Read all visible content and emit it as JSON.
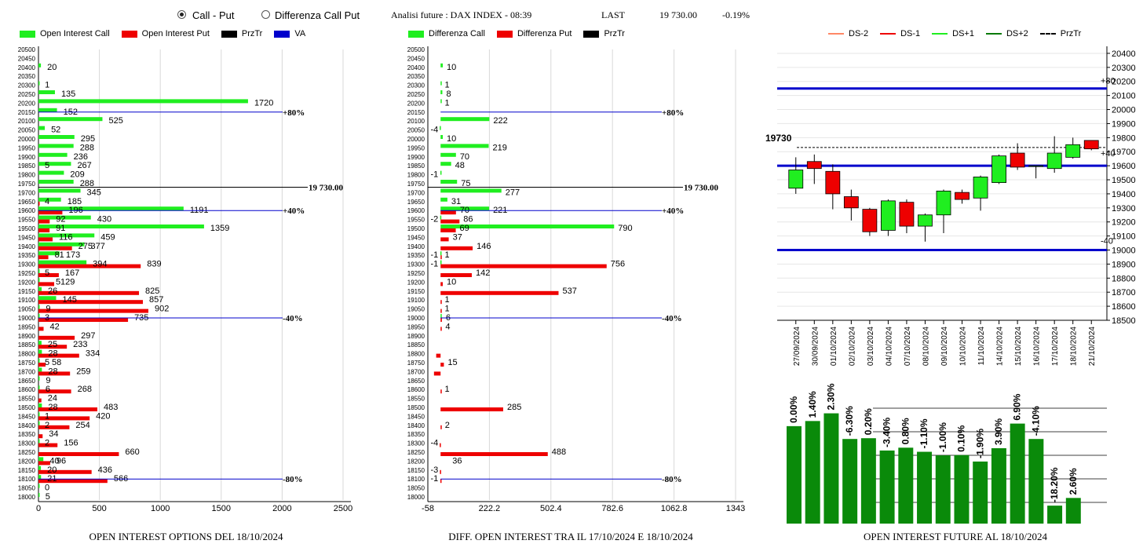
{
  "header": {
    "radio_call_put": "Call - Put",
    "radio_diff": "Differenza Call Put",
    "analysis_title": "Analisi future : DAX INDEX - 08:39",
    "last_label": "LAST",
    "last_value": "19 730.00",
    "change": "-0.19%"
  },
  "colors": {
    "call": "#20ee20",
    "put": "#ee0000",
    "prztr": "#000000",
    "va": "#0000cc",
    "future_bar": "#0a8a0a",
    "ds_minus2": "#ff8866",
    "ds_plus2": "#0a7a0a"
  },
  "strikes": [
    20500,
    20450,
    20400,
    20350,
    20300,
    20250,
    20200,
    20150,
    20100,
    20050,
    20000,
    19950,
    19900,
    19850,
    19800,
    19750,
    19700,
    19650,
    19600,
    19550,
    19500,
    19450,
    19400,
    19350,
    19300,
    19250,
    19200,
    19150,
    19100,
    19050,
    19000,
    18950,
    18900,
    18850,
    18800,
    18750,
    18700,
    18650,
    18600,
    18550,
    18500,
    18450,
    18400,
    18350,
    18300,
    18250,
    18200,
    18150,
    18100,
    18050,
    18000
  ],
  "left_panel": {
    "caption": "OPEN INTEREST OPTIONS DEL 18/10/2024",
    "legend": [
      "Open Interest Call",
      "Open Interest Put",
      "PrzTr",
      "VA"
    ],
    "x_ticks": [
      0,
      500,
      1000,
      1500,
      2000,
      2500
    ],
    "x_range": [
      0,
      2500
    ],
    "price_label": "19 730.00",
    "level_labels": [
      "+80%",
      "+40%",
      "-40%",
      "-80%"
    ],
    "calls": {
      "20400": 20,
      "20300": 1,
      "20250": 135,
      "20200": 1720,
      "20150": 152,
      "20100": 525,
      "20050": 52,
      "20000": 295,
      "19950": 288,
      "19900": 236,
      "19850": 267,
      "19800": 209,
      "19750": 288,
      "19700": 345,
      "19650": 185,
      "19600": 1191,
      "19550": 430,
      "19500": 1359,
      "19450": 459,
      "19400": 377,
      "19350": 173,
      "19300": 394,
      "19250": 5,
      "19200": 5,
      "19150": 26,
      "19100": 145,
      "19050": 9,
      "19000": 3,
      "18850": 25,
      "18800": 28,
      "18750": 5,
      "18700": 28,
      "18650": 9,
      "18600": 6,
      "18500": 28,
      "18450": 1,
      "18400": 2,
      "18300": 2,
      "18200": 40,
      "18150": 20,
      "18100": 21,
      "18050": 0,
      "18000": 5
    },
    "puts": {
      "19650": 4,
      "19600": 196,
      "19550": 92,
      "19500": 91,
      "19450": 116,
      "19400": 275,
      "19350": 81,
      "19300": 839,
      "19250": 167,
      "19200": 129,
      "19150": 825,
      "19100": 857,
      "19050": 902,
      "19000": 735,
      "18950": 42,
      "18900": 297,
      "18850": 233,
      "18800": 334,
      "18750": 58,
      "18700": 259,
      "18600": 268,
      "18550": 24,
      "18500": 483,
      "18450": 420,
      "18400": 254,
      "18350": 34,
      "18300": 156,
      "18250": 660,
      "18200": 96,
      "18150": 436,
      "18100": 566
    },
    "labels": [
      {
        "strike": 20400,
        "text": "20"
      },
      {
        "strike": 20300,
        "text": "1"
      },
      {
        "strike": 20250,
        "text": "135"
      },
      {
        "strike": 20200,
        "text": "1720"
      },
      {
        "strike": 20150,
        "text": "152"
      },
      {
        "strike": 20100,
        "text": "525"
      },
      {
        "strike": 20050,
        "text": "52"
      },
      {
        "strike": 20000,
        "text": "295"
      },
      {
        "strike": 19950,
        "text": "288"
      },
      {
        "strike": 19900,
        "text": "236"
      },
      {
        "strike": 19850,
        "text": "267"
      },
      {
        "strike": 19850,
        "text": "5",
        "at": 0
      },
      {
        "strike": 19800,
        "text": "209"
      },
      {
        "strike": 19750,
        "text": "288"
      },
      {
        "strike": 19700,
        "text": "345"
      },
      {
        "strike": 19650,
        "text": "185"
      },
      {
        "strike": 19650,
        "text": "4",
        "at": 0
      },
      {
        "strike": 19600,
        "text": "1191"
      },
      {
        "strike": 19600,
        "text": "196",
        "at": 196
      },
      {
        "strike": 19550,
        "text": "430"
      },
      {
        "strike": 19550,
        "text": "92",
        "at": 92
      },
      {
        "strike": 19500,
        "text": "1359"
      },
      {
        "strike": 19500,
        "text": "91",
        "at": 91
      },
      {
        "strike": 19450,
        "text": "459"
      },
      {
        "strike": 19450,
        "text": "116",
        "at": 116
      },
      {
        "strike": 19400,
        "text": "377"
      },
      {
        "strike": 19400,
        "text": "275",
        "at": 275
      },
      {
        "strike": 19350,
        "text": "173"
      },
      {
        "strike": 19350,
        "text": "81",
        "at": 81
      },
      {
        "strike": 19300,
        "text": "394"
      },
      {
        "strike": 19300,
        "text": "839",
        "at": 839
      },
      {
        "strike": 19250,
        "text": "167"
      },
      {
        "strike": 19250,
        "text": "5",
        "at": 0
      },
      {
        "strike": 19200,
        "text": "129"
      },
      {
        "strike": 19200,
        "text": "5",
        "at": 90
      },
      {
        "strike": 19150,
        "text": "825"
      },
      {
        "strike": 19150,
        "text": "26",
        "at": 26
      },
      {
        "strike": 19100,
        "text": "857"
      },
      {
        "strike": 19100,
        "text": "145",
        "at": 145
      },
      {
        "strike": 19050,
        "text": "902"
      },
      {
        "strike": 19050,
        "text": "9",
        "at": 9
      },
      {
        "strike": 19000,
        "text": "735"
      },
      {
        "strike": 19000,
        "text": "3",
        "at": 0
      },
      {
        "strike": 18950,
        "text": "42"
      },
      {
        "strike": 18900,
        "text": "297"
      },
      {
        "strike": 18850,
        "text": "233"
      },
      {
        "strike": 18850,
        "text": "25",
        "at": 25
      },
      {
        "strike": 18800,
        "text": "334"
      },
      {
        "strike": 18800,
        "text": "28",
        "at": 28
      },
      {
        "strike": 18750,
        "text": "58"
      },
      {
        "strike": 18750,
        "text": "5",
        "at": 0
      },
      {
        "strike": 18700,
        "text": "259"
      },
      {
        "strike": 18700,
        "text": "28",
        "at": 28
      },
      {
        "strike": 18650,
        "text": "9"
      },
      {
        "strike": 18600,
        "text": "268"
      },
      {
        "strike": 18600,
        "text": "6",
        "at": 6
      },
      {
        "strike": 18550,
        "text": "24"
      },
      {
        "strike": 18500,
        "text": "483"
      },
      {
        "strike": 18500,
        "text": "28",
        "at": 28
      },
      {
        "strike": 18450,
        "text": "420"
      },
      {
        "strike": 18450,
        "text": "1",
        "at": 0
      },
      {
        "strike": 18400,
        "text": "254"
      },
      {
        "strike": 18400,
        "text": "2",
        "at": 0
      },
      {
        "strike": 18350,
        "text": "34"
      },
      {
        "strike": 18300,
        "text": "156"
      },
      {
        "strike": 18300,
        "text": "2",
        "at": 0
      },
      {
        "strike": 18250,
        "text": "660"
      },
      {
        "strike": 18200,
        "text": "96"
      },
      {
        "strike": 18200,
        "text": "40",
        "at": 40
      },
      {
        "strike": 18150,
        "text": "436"
      },
      {
        "strike": 18150,
        "text": "20",
        "at": 20
      },
      {
        "strike": 18100,
        "text": "566"
      },
      {
        "strike": 18100,
        "text": "21",
        "at": 21
      },
      {
        "strike": 18050,
        "text": "0"
      },
      {
        "strike": 18000,
        "text": "5"
      }
    ]
  },
  "middle_panel": {
    "caption": "DIFF. OPEN INTEREST TRA IL 17/10/2024 E 18/10/2024",
    "legend": [
      "Differenza Call",
      "Differenza Put",
      "PrzTr"
    ],
    "x_ticks": [
      "-58",
      "222.2",
      "502.4",
      "782.6",
      "1062.8",
      "1343"
    ],
    "x_range": [
      -58,
      1343
    ],
    "price_label": "19 730.00",
    "level_labels": [
      "+80%",
      "+40%",
      "-40%",
      "-80%"
    ],
    "diff_call": {
      "20400": 10,
      "20300": 1,
      "20250": 8,
      "20200": 1,
      "20100": 222,
      "20050": -4,
      "20000": 10,
      "19950": 219,
      "19900": 70,
      "19850": 48,
      "19800": -1,
      "19750": 75,
      "19700": 277,
      "19650": 31,
      "19600": 221,
      "19550": -2,
      "19500": 790,
      "19350": -1,
      "19300": -1,
      "19000": 3
    },
    "diff_put": {
      "19600": 70,
      "19550": 86,
      "19500": 69,
      "19450": 37,
      "19400": 146,
      "19350": 1,
      "19300": 756,
      "19250": 142,
      "19200": 10,
      "19150": 537,
      "19100": 1,
      "19050": 1,
      "19000": 6,
      "18950": 4,
      "18800": -20,
      "18750": 15,
      "18700": -30,
      "18600": 1,
      "18500": 285,
      "18400": 2,
      "18300": -4,
      "18250": 488,
      "18150": -3,
      "18100": -1
    },
    "labels": [
      {
        "strike": 20400,
        "text": "10",
        "v": 10
      },
      {
        "strike": 20300,
        "text": "1",
        "v": 1
      },
      {
        "strike": 20250,
        "text": "8",
        "v": 8
      },
      {
        "strike": 20200,
        "text": "1",
        "v": 1
      },
      {
        "strike": 20100,
        "text": "222",
        "v": 222
      },
      {
        "strike": 20050,
        "text": "-4",
        "v": -4
      },
      {
        "strike": 20000,
        "text": "10",
        "v": 10
      },
      {
        "strike": 19950,
        "text": "219",
        "v": 219
      },
      {
        "strike": 19900,
        "text": "70",
        "v": 70
      },
      {
        "strike": 19850,
        "text": "48",
        "v": 48
      },
      {
        "strike": 19800,
        "text": "-1",
        "v": -1
      },
      {
        "strike": 19750,
        "text": "75",
        "v": 75
      },
      {
        "strike": 19700,
        "text": "277",
        "v": 277
      },
      {
        "strike": 19650,
        "text": "31",
        "v": 31
      },
      {
        "strike": 19600,
        "text": "221",
        "v": 221
      },
      {
        "strike": 19600,
        "text": "70",
        "v": 70
      },
      {
        "strike": 19550,
        "text": "-2",
        "v": -2
      },
      {
        "strike": 19550,
        "text": "86",
        "v": 86
      },
      {
        "strike": 19500,
        "text": "790",
        "v": 790
      },
      {
        "strike": 19500,
        "text": "69",
        "v": 69
      },
      {
        "strike": 19450,
        "text": "37",
        "v": 37
      },
      {
        "strike": 19400,
        "text": "146",
        "v": 146
      },
      {
        "strike": 19350,
        "text": "-1",
        "v": -1
      },
      {
        "strike": 19350,
        "text": "1",
        "v": 1
      },
      {
        "strike": 19300,
        "text": "-1",
        "v": -1
      },
      {
        "strike": 19300,
        "text": "756",
        "v": 756
      },
      {
        "strike": 19250,
        "text": "142",
        "v": 142
      },
      {
        "strike": 19200,
        "text": "10",
        "v": 10
      },
      {
        "strike": 19150,
        "text": "537",
        "v": 537
      },
      {
        "strike": 19100,
        "text": "1",
        "v": 1
      },
      {
        "strike": 19050,
        "text": "1",
        "v": 1
      },
      {
        "strike": 19000,
        "text": "6",
        "v": 6
      },
      {
        "strike": 18950,
        "text": "4",
        "v": 4
      },
      {
        "strike": 18750,
        "text": "15",
        "v": 15
      },
      {
        "strike": 18600,
        "text": "1",
        "v": 1
      },
      {
        "strike": 18500,
        "text": "285",
        "v": 285
      },
      {
        "strike": 18400,
        "text": "2",
        "v": 2
      },
      {
        "strike": 18300,
        "text": "-4",
        "v": -4
      },
      {
        "strike": 18250,
        "text": "488",
        "v": 488
      },
      {
        "strike": 18200,
        "text": "36",
        "v": 36
      },
      {
        "strike": 18150,
        "text": "-3",
        "v": -3
      },
      {
        "strike": 18100,
        "text": "-1",
        "v": -1
      }
    ]
  },
  "right_panel": {
    "legend": [
      "DS-2",
      "DS-1",
      "DS+1",
      "DS+2",
      "PrzTr"
    ],
    "price_label": "19730",
    "y_range": [
      18500,
      20450
    ],
    "y_ticks": [
      20400,
      20300,
      20200,
      20100,
      20000,
      19900,
      19800,
      19700,
      19600,
      19500,
      19400,
      19300,
      19200,
      19100,
      19000,
      18900,
      18800,
      18700,
      18600,
      18500
    ],
    "level_upper": {
      "value": 20150,
      "label": "+80"
    },
    "level_mid_upper": {
      "value": 19600
    },
    "level_lower": {
      "value": 19000,
      "label": "-40"
    },
    "price_line": 19730,
    "pct_label_plus40": "+40",
    "dates": [
      "27/09/2024",
      "30/09/2024",
      "01/10/2024",
      "02/10/2024",
      "03/10/2024",
      "04/10/2024",
      "07/10/2024",
      "08/10/2024",
      "09/10/2024",
      "10/10/2024",
      "11/10/2024",
      "14/10/2024",
      "15/10/2024",
      "16/10/2024",
      "17/10/2024",
      "18/10/2024",
      "21/10/2024"
    ],
    "candles": [
      {
        "o": 19440,
        "c": 19570,
        "h": 19660,
        "l": 19400
      },
      {
        "o": 19630,
        "c": 19580,
        "h": 19680,
        "l": 19470
      },
      {
        "o": 19560,
        "c": 19400,
        "h": 19610,
        "l": 19290
      },
      {
        "o": 19380,
        "c": 19300,
        "h": 19430,
        "l": 19210
      },
      {
        "o": 19290,
        "c": 19130,
        "h": 19300,
        "l": 19100
      },
      {
        "o": 19140,
        "c": 19350,
        "h": 19360,
        "l": 19100
      },
      {
        "o": 19340,
        "c": 19170,
        "h": 19360,
        "l": 19120
      },
      {
        "o": 19170,
        "c": 19250,
        "h": 19260,
        "l": 19060
      },
      {
        "o": 19250,
        "c": 19420,
        "h": 19430,
        "l": 19120
      },
      {
        "o": 19410,
        "c": 19360,
        "h": 19430,
        "l": 19330
      },
      {
        "o": 19370,
        "c": 19520,
        "h": 19530,
        "l": 19280
      },
      {
        "o": 19480,
        "c": 19670,
        "h": 19680,
        "l": 19470
      },
      {
        "o": 19690,
        "c": 19590,
        "h": 19760,
        "l": 19570
      },
      {
        "o": 19600,
        "c": 19600,
        "h": 19600,
        "l": 19510
      },
      {
        "o": 19580,
        "c": 19690,
        "h": 19810,
        "l": 19550
      },
      {
        "o": 19660,
        "c": 19750,
        "h": 19800,
        "l": 19650
      },
      {
        "o": 19780,
        "c": 19720,
        "h": 19780,
        "l": 19710
      }
    ],
    "caption": "OPEN INTEREST FUTURE AL 18/10/2024",
    "oi_future": [
      {
        "pct": "0.00%",
        "v": 148
      },
      {
        "pct": "1.40%",
        "v": 150
      },
      {
        "pct": "2.30%",
        "v": 153
      },
      {
        "pct": "-6.30%",
        "v": 143
      },
      {
        "pct": "0.20%",
        "v": 143.3
      },
      {
        "pct": "-3.40%",
        "v": 138.5
      },
      {
        "pct": "0.80%",
        "v": 139.6
      },
      {
        "pct": "-1.10%",
        "v": 138
      },
      {
        "pct": "-1.00%",
        "v": 136.6
      },
      {
        "pct": "0.10%",
        "v": 136.7
      },
      {
        "pct": "-1.90%",
        "v": 134.2
      },
      {
        "pct": "3.90%",
        "v": 139.4
      },
      {
        "pct": "6.90%",
        "v": 149
      },
      {
        "pct": "-4.10%",
        "v": 143
      },
      {
        "pct": "-18.20%",
        "v": 117
      },
      {
        "pct": "2.60%",
        "v": 120
      }
    ]
  },
  "chart_data": [
    {
      "type": "bar",
      "title": "OPEN INTEREST OPTIONS DEL 18/10/2024",
      "categories_ref": "strikes",
      "series": [
        {
          "name": "Open Interest Call",
          "ref": "left_panel.calls"
        },
        {
          "name": "Open Interest Put",
          "ref": "left_panel.puts"
        }
      ],
      "xlim": [
        0,
        2500
      ]
    },
    {
      "type": "bar",
      "title": "DIFF. OPEN INTEREST TRA IL 17/10/2024 E 18/10/2024",
      "categories_ref": "strikes",
      "series": [
        {
          "name": "Differenza Call",
          "ref": "middle_panel.diff_call"
        },
        {
          "name": "Differenza Put",
          "ref": "middle_panel.diff_put"
        }
      ],
      "xlim": [
        -58,
        1343
      ]
    },
    {
      "type": "line",
      "ref": "right_panel.candles",
      "categories_ref": "right_panel.dates",
      "ylim": [
        18500,
        20450
      ]
    },
    {
      "type": "bar",
      "title": "OPEN INTEREST FUTURE AL 18/10/2024",
      "ref": "right_panel.oi_future"
    }
  ]
}
